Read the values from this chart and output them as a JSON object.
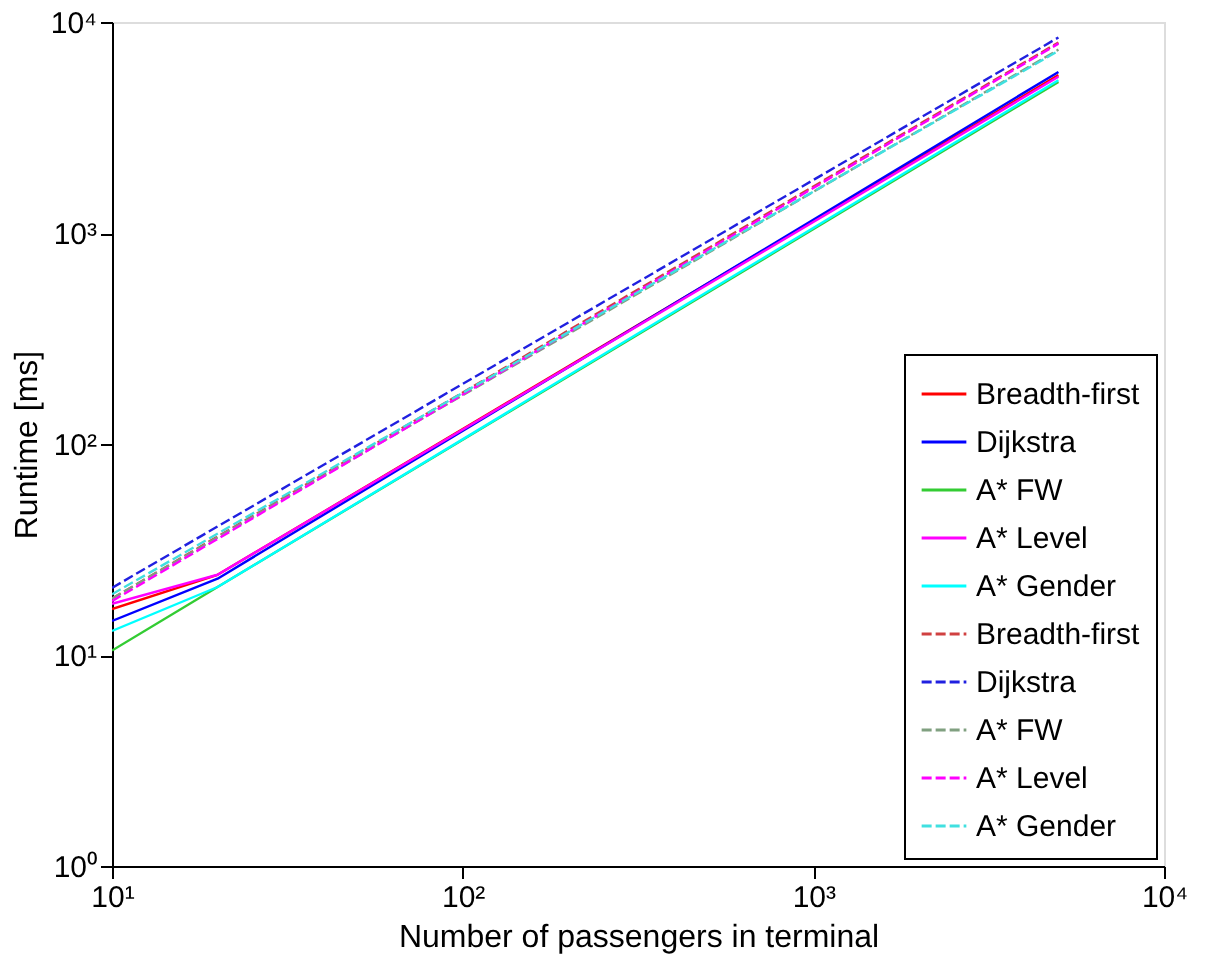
{
  "chart_data": {
    "type": "line",
    "xlabel": "Number of passengers in terminal",
    "ylabel": "Runtime [ms]",
    "log": "xy",
    "grid": false,
    "legend": "bottom right",
    "marker": "none",
    "xlim": [
      10,
      10000
    ],
    "ylim": [
      1,
      10000
    ],
    "xticks": [
      {
        "value": 10,
        "label": "10¹"
      },
      {
        "value": 100,
        "label": "10²"
      },
      {
        "value": 1000,
        "label": "10³"
      },
      {
        "value": 10000,
        "label": "10⁴"
      }
    ],
    "yticks": [
      {
        "value": 1,
        "label": "10⁰"
      },
      {
        "value": 10,
        "label": "10¹"
      },
      {
        "value": 100,
        "label": "10²"
      },
      {
        "value": 1000,
        "label": "10³"
      },
      {
        "value": 10000,
        "label": "10⁴"
      }
    ],
    "series": [
      {
        "name": "Breadth-first",
        "color": "#ff0000",
        "line_style": "solid",
        "x": [
          10,
          20,
          5000
        ],
        "values": [
          16.5,
          24,
          5600
        ]
      },
      {
        "name": "Dijkstra",
        "color": "#0000ff",
        "line_style": "solid",
        "x": [
          10,
          20,
          5000
        ],
        "values": [
          14.5,
          23,
          5800
        ]
      },
      {
        "name": "A* FW",
        "color": "#33cc33",
        "line_style": "solid",
        "x": [
          10,
          20,
          5000
        ],
        "values": [
          10.5,
          21,
          5200
        ]
      },
      {
        "name": "A* Level",
        "color": "#ff00ff",
        "line_style": "solid",
        "x": [
          10,
          20,
          5000
        ],
        "values": [
          17.5,
          24,
          5500
        ]
      },
      {
        "name": "A* Gender",
        "color": "#00ffff",
        "line_style": "solid",
        "x": [
          10,
          20,
          5000
        ],
        "values": [
          13,
          21,
          5300
        ]
      },
      {
        "name": "Breadth-first",
        "color": "#d04040",
        "line_style": "dashed",
        "x": [
          10,
          5000
        ],
        "values": [
          18.5,
          8000
        ]
      },
      {
        "name": "Dijkstra",
        "color": "#2020e0",
        "line_style": "dashed",
        "x": [
          10,
          5000
        ],
        "values": [
          20.8,
          8450
        ]
      },
      {
        "name": "A* FW",
        "color": "#80a080",
        "line_style": "dashed",
        "x": [
          10,
          5000
        ],
        "values": [
          18.5,
          7400
        ]
      },
      {
        "name": "A* Level",
        "color": "#ff00ff",
        "line_style": "dashed",
        "x": [
          10,
          5000
        ],
        "values": [
          18,
          7900
        ]
      },
      {
        "name": "A* Gender",
        "color": "#40e0e0",
        "line_style": "dashed",
        "x": [
          10,
          5000
        ],
        "values": [
          19.4,
          7300
        ]
      }
    ]
  }
}
